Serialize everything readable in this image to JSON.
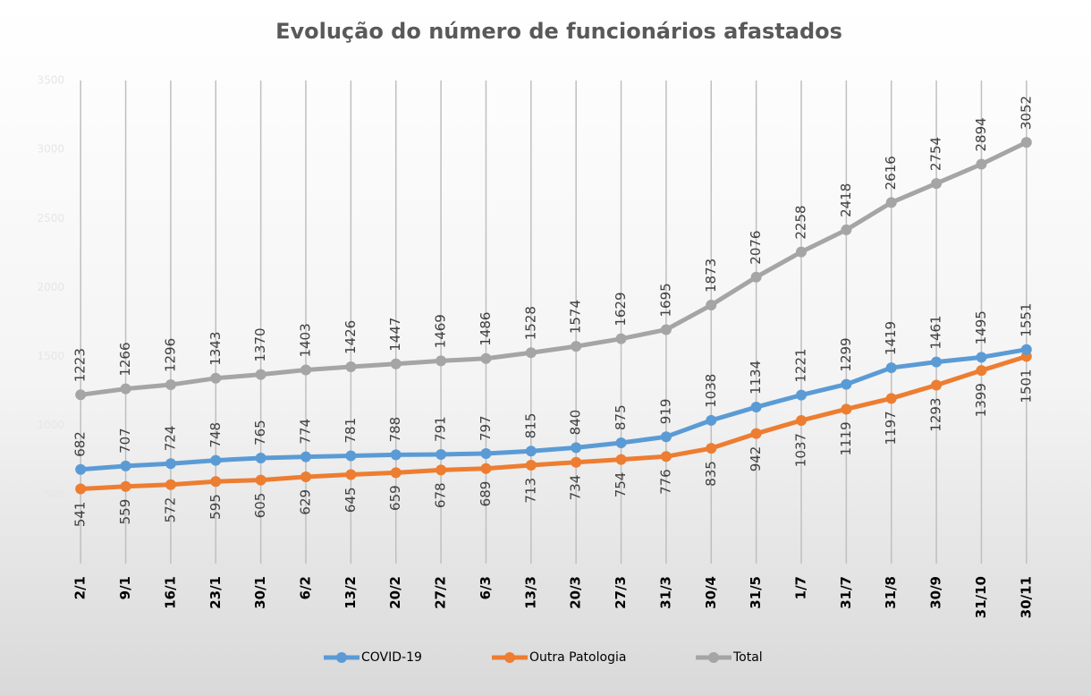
{
  "chart_data": {
    "type": "line",
    "title": "Evolução do número de funcionários afastados",
    "categories": [
      "2/1",
      "9/1",
      "16/1",
      "23/1",
      "30/1",
      "6/2",
      "13/2",
      "20/2",
      "27/2",
      "6/3",
      "13/3",
      "20/3",
      "27/3",
      "31/3",
      "30/4",
      "31/5",
      "1/7",
      "31/7",
      "31/8",
      "30/9",
      "31/10",
      "30/11"
    ],
    "series": [
      {
        "name": "COVID-19",
        "color": "#5b9bd5",
        "values": [
          682,
          707,
          724,
          748,
          765,
          774,
          781,
          788,
          791,
          797,
          815,
          840,
          875,
          919,
          1038,
          1134,
          1221,
          1299,
          1419,
          1461,
          1495,
          1551
        ]
      },
      {
        "name": "Outra Patologia",
        "color": "#ed7d31",
        "values": [
          541,
          559,
          572,
          595,
          605,
          629,
          645,
          659,
          678,
          689,
          713,
          734,
          754,
          776,
          835,
          942,
          1037,
          1119,
          1197,
          1293,
          1399,
          1501
        ]
      },
      {
        "name": "Total",
        "color": "#a5a5a5",
        "values": [
          1223,
          1266,
          1296,
          1343,
          1370,
          1403,
          1426,
          1447,
          1469,
          1486,
          1528,
          1574,
          1629,
          1695,
          1873,
          2076,
          2258,
          2418,
          2616,
          2754,
          2894,
          3052
        ]
      }
    ],
    "ylim": [
      0,
      3500
    ],
    "yticks": [
      0,
      500,
      1000,
      1500,
      2000,
      2500,
      3000,
      3500
    ],
    "legend": "bottom"
  }
}
